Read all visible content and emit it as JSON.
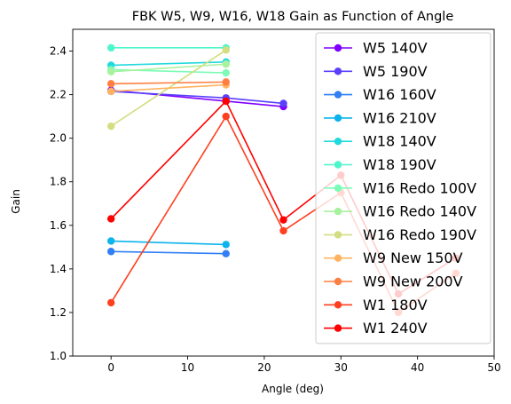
{
  "chart_data": {
    "type": "line",
    "title": "FBK W5, W9, W16, W18 Gain as Function of Angle",
    "xlabel": "Angle (deg)",
    "ylabel": "Gain",
    "xlim": [
      -5,
      50
    ],
    "ylim": [
      1.0,
      2.5
    ],
    "xticks": [
      0,
      10,
      20,
      30,
      40,
      50
    ],
    "yticks": [
      1.0,
      1.2,
      1.4,
      1.6,
      1.8,
      2.0,
      2.2,
      2.4
    ],
    "xtick_labels": [
      "0",
      "10",
      "20",
      "30",
      "40",
      "50"
    ],
    "ytick_labels": [
      "1.0",
      "1.2",
      "1.4",
      "1.6",
      "1.8",
      "2.0",
      "2.2",
      "2.4"
    ],
    "grid": false,
    "legend_position": "upper right",
    "series": [
      {
        "name": "W5 140V",
        "color": "#8000ff",
        "x": [
          0,
          15,
          22.5
        ],
        "y": [
          2.22,
          2.17,
          2.145
        ]
      },
      {
        "name": "W5 190V",
        "color": "#5a3ffc",
        "x": [
          0,
          15,
          22.5
        ],
        "y": [
          2.215,
          2.185,
          2.16
        ]
      },
      {
        "name": "W16 160V",
        "color": "#307ff6",
        "x": [
          0,
          15
        ],
        "y": [
          1.48,
          1.47
        ]
      },
      {
        "name": "W16 210V",
        "color": "#0cb3ec",
        "x": [
          0,
          15
        ],
        "y": [
          1.528,
          1.512
        ]
      },
      {
        "name": "W18 140V",
        "color": "#22d9dd",
        "x": [
          0,
          15
        ],
        "y": [
          2.335,
          2.35
        ]
      },
      {
        "name": "W18 190V",
        "color": "#4ff6cb",
        "x": [
          0,
          15
        ],
        "y": [
          2.415,
          2.415
        ]
      },
      {
        "name": "W16 Redo 100V",
        "color": "#7cfcb6",
        "x": [
          0,
          15
        ],
        "y": [
          2.315,
          2.3
        ]
      },
      {
        "name": "W16 Redo 140V",
        "color": "#a8f29e",
        "x": [
          0,
          15
        ],
        "y": [
          2.305,
          2.34
        ]
      },
      {
        "name": "W16 Redo 190V",
        "color": "#d4dd80",
        "x": [
          0,
          15
        ],
        "y": [
          2.055,
          2.405
        ]
      },
      {
        "name": "W9 New 150V",
        "color": "#ffb360",
        "x": [
          0,
          15
        ],
        "y": [
          2.215,
          2.245
        ]
      },
      {
        "name": "W9 New 200V",
        "color": "#ff7e41",
        "x": [
          0,
          15
        ],
        "y": [
          2.25,
          2.258
        ]
      },
      {
        "name": "W1 180V",
        "color": "#ff4020",
        "x": [
          0,
          15,
          22.5,
          30,
          37.5,
          45
        ],
        "y": [
          1.245,
          2.1,
          1.575,
          1.75,
          1.2,
          1.38
        ]
      },
      {
        "name": "W1 240V",
        "color": "#ff0000",
        "x": [
          0,
          15,
          22.5,
          30,
          37.5,
          45
        ],
        "y": [
          1.63,
          2.17,
          1.625,
          1.83,
          1.285,
          1.45
        ]
      }
    ]
  }
}
